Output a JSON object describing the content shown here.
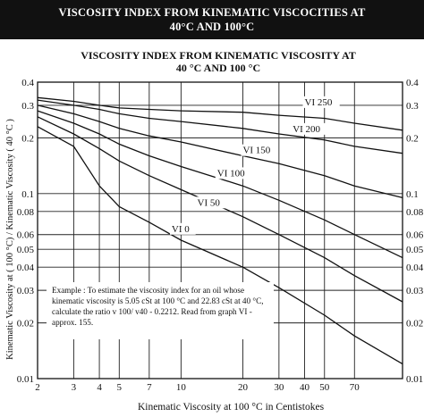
{
  "banner": {
    "line1": "VISCOSITY INDEX FROM KINEMATIC VISCOCITIES AT",
    "line2": "40°C AND 100°C"
  },
  "chart_data": {
    "type": "line",
    "title_line1": "VISCOSITY INDEX FROM KINEMATIC VISCOSITY AT",
    "title_line2": "40 °C AND 100 °C",
    "xlabel": "Kinematic Viscosity at 100 °C in Centistokes",
    "ylabel": "Kinematic Viscosity at ( 100 °C) / Kinematic Viscosity ( 40 °C )",
    "x_scale": "log",
    "y_scale": "log",
    "xlim": [
      2,
      120
    ],
    "ylim": [
      0.01,
      0.4
    ],
    "x_ticks": [
      "2",
      "3",
      "4",
      "5",
      "7",
      "10",
      "20",
      "30",
      "40",
      "50",
      "70"
    ],
    "y_ticks_left": [
      "0.4",
      "0.3",
      "0.2",
      "0.1",
      "0.08",
      "0.06",
      "0.05",
      "0.04",
      "0.03",
      "0.02",
      "0.01"
    ],
    "y_ticks_right": [
      "0.4",
      "0.3",
      "0.2",
      "0.1",
      "0.08",
      "0.06",
      "0.05",
      "0.04",
      "0.03",
      "0.02",
      "0.01"
    ],
    "grid": true,
    "annotation": [
      "Example : To estimate the viscosity index for an oil whose",
      "kinematic viscosity is 5.05 cSt at 100 °C and 22.83 cSt at 40 °C,",
      "calculate the ratio v 100/ v40 - 0.2212. Read from graph VI -",
      "approx. 155."
    ],
    "series": [
      {
        "name": "VI 250",
        "x": [
          2,
          3,
          4,
          5,
          7,
          10,
          20,
          30,
          50,
          70,
          120
        ],
        "y": [
          0.33,
          0.315,
          0.3,
          0.29,
          0.285,
          0.28,
          0.275,
          0.265,
          0.255,
          0.24,
          0.22
        ]
      },
      {
        "name": "VI 200",
        "x": [
          2,
          3,
          4,
          5,
          7,
          10,
          20,
          30,
          50,
          70,
          120
        ],
        "y": [
          0.32,
          0.3,
          0.285,
          0.27,
          0.255,
          0.245,
          0.225,
          0.21,
          0.195,
          0.18,
          0.165
        ]
      },
      {
        "name": "VI 150",
        "x": [
          2,
          3,
          4,
          5,
          7,
          10,
          20,
          30,
          50,
          70,
          120
        ],
        "y": [
          0.3,
          0.27,
          0.245,
          0.225,
          0.205,
          0.19,
          0.16,
          0.145,
          0.125,
          0.11,
          0.095
        ]
      },
      {
        "name": "VI 100",
        "x": [
          2,
          3,
          4,
          5,
          7,
          10,
          20,
          30,
          50,
          70,
          120
        ],
        "y": [
          0.28,
          0.24,
          0.21,
          0.185,
          0.16,
          0.14,
          0.11,
          0.092,
          0.072,
          0.06,
          0.045
        ]
      },
      {
        "name": "VI 50",
        "x": [
          2,
          3,
          4,
          5,
          7,
          10,
          20,
          30,
          50,
          70,
          120
        ],
        "y": [
          0.26,
          0.21,
          0.175,
          0.15,
          0.125,
          0.105,
          0.075,
          0.06,
          0.045,
          0.036,
          0.026
        ]
      },
      {
        "name": "VI 0",
        "x": [
          2,
          3,
          4,
          5,
          7,
          10,
          20,
          30,
          50,
          70,
          120
        ],
        "y": [
          0.23,
          0.18,
          0.11,
          0.085,
          0.07,
          0.056,
          0.04,
          0.031,
          0.022,
          0.017,
          0.012
        ]
      }
    ]
  }
}
